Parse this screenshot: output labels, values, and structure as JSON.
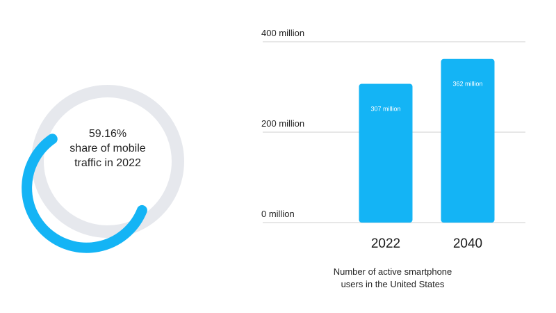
{
  "colors": {
    "accent": "#14b4f5",
    "track": "#e6e8ed",
    "gridline": "#cfcfcf",
    "text": "#222222"
  },
  "donut": {
    "value_text": "59.16%",
    "line2": "share of mobile",
    "line3": "traffic in 2022"
  },
  "chart_data": [
    {
      "type": "pie",
      "values": [
        59.16,
        40.84
      ],
      "labels": [
        "59.16%",
        ""
      ],
      "title": "",
      "caption": "59.16% share of mobile traffic in 2022"
    },
    {
      "type": "bar",
      "categories": [
        "2022",
        "2040"
      ],
      "values": [
        307,
        362
      ],
      "value_labels": [
        "307 million",
        "362 million"
      ],
      "yticks": [
        0,
        200,
        400
      ],
      "ytick_labels": [
        "0 million",
        "200 million",
        "400 million"
      ],
      "ylim": [
        0,
        400
      ],
      "grid": true,
      "title": "",
      "caption_lines": [
        "Number of active smartphone",
        "users in the United States"
      ]
    }
  ]
}
